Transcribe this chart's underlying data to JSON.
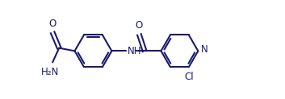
{
  "bg_color": "#ffffff",
  "line_color": "#1a1a6e",
  "linewidth": 1.5,
  "figsize": [
    3.53,
    1.23
  ],
  "dpi": 100,
  "xlim": [
    0,
    9.5
  ],
  "ylim": [
    0,
    3.2
  ]
}
